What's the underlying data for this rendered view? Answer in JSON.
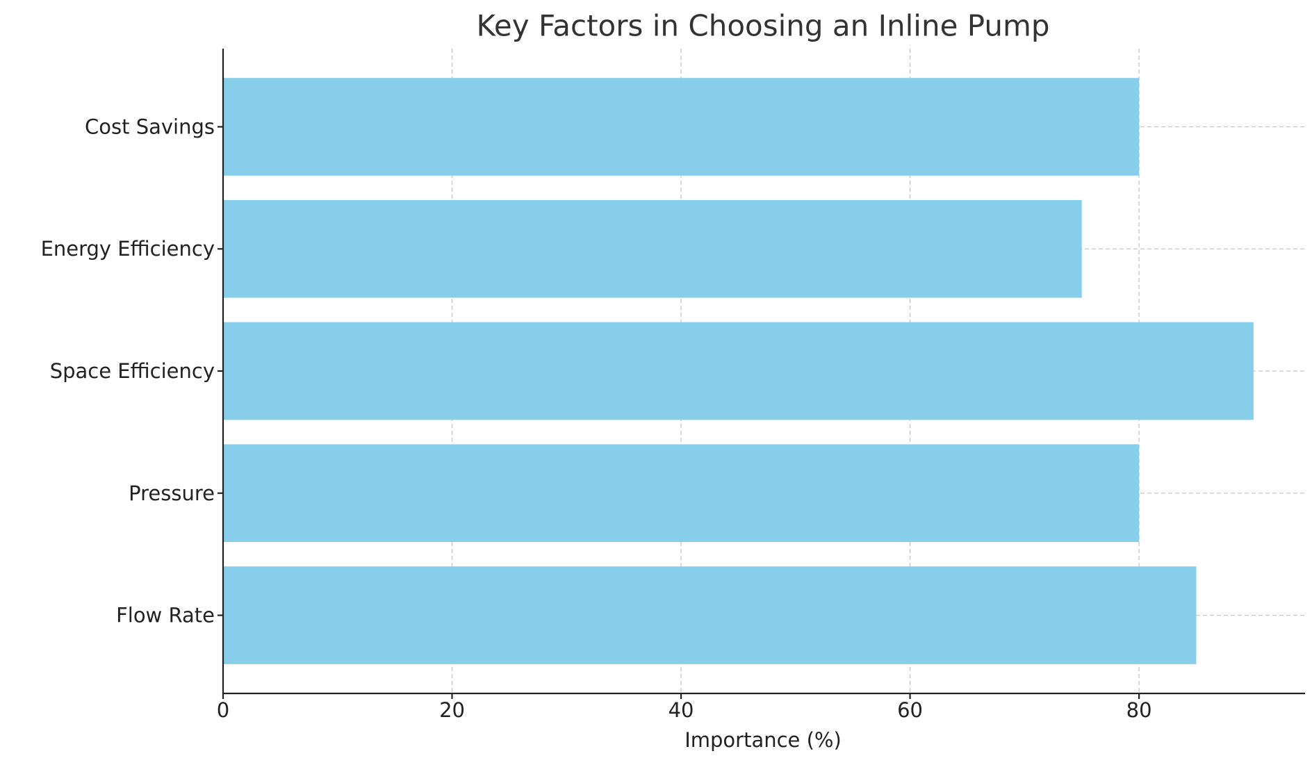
{
  "chart_data": {
    "type": "barh",
    "title": "Key Factors in Choosing an Inline Pump",
    "x_label": "Importance (%)",
    "categories": [
      "Flow Rate",
      "Pressure",
      "Space Efficiency",
      "Energy Efficiency",
      "Cost Savings"
    ],
    "values": [
      85,
      80,
      90,
      75,
      80
    ],
    "color": "#87ceeb",
    "xlim": [
      0,
      94.5
    ],
    "xticks": [
      0,
      20,
      40,
      60,
      80
    ],
    "grid": true
  }
}
